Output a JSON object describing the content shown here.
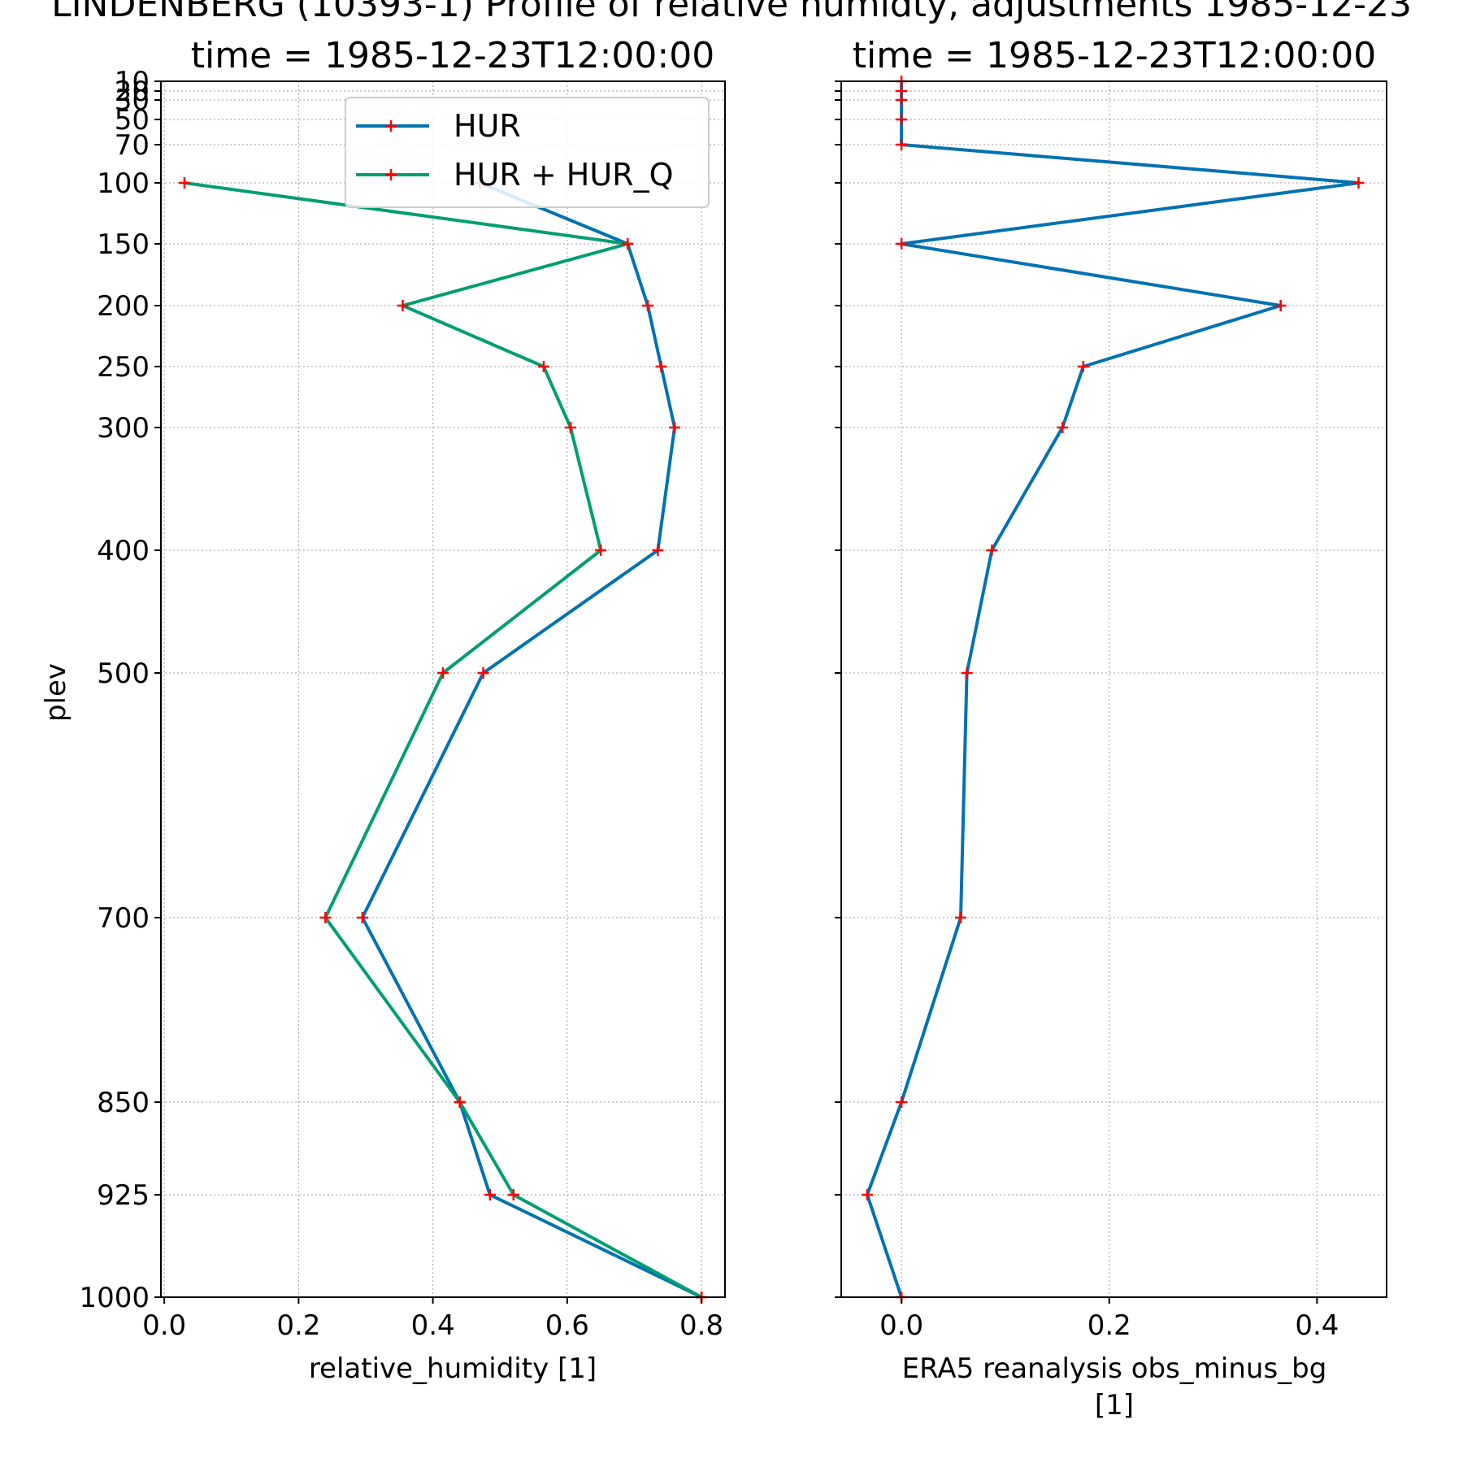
{
  "figure": {
    "suptitle": "LINDENBERG (10393-1) Profile of relative humidty, adjustments 1985-12-23"
  },
  "chart_data": [
    {
      "type": "line",
      "title": "time = 1985-12-23T12:00:00",
      "xlabel": "relative_humidity [1]",
      "ylabel": "plev",
      "xlim": [
        -0.005,
        0.835
      ],
      "ylim": [
        1000,
        10
      ],
      "xticks": [
        "0.0",
        "0.2",
        "0.4",
        "0.6",
        "0.8"
      ],
      "yticks": [
        10,
        20,
        30,
        50,
        70,
        100,
        150,
        200,
        250,
        300,
        400,
        500,
        700,
        850,
        925,
        1000
      ],
      "grid": true,
      "legend": "top-right",
      "y_scale": "custom-pressure",
      "marker_color": "#ff0000",
      "series": [
        {
          "name": "HUR",
          "color": "#0072b2",
          "points": [
            [
              0.47,
              100
            ],
            [
              0.69,
              150
            ],
            [
              0.72,
              200
            ],
            [
              0.74,
              250
            ],
            [
              0.76,
              300
            ],
            [
              0.735,
              400
            ],
            [
              0.475,
              500
            ],
            [
              0.295,
              700
            ],
            [
              0.44,
              850
            ],
            [
              0.485,
              925
            ],
            [
              0.8,
              1000
            ]
          ]
        },
        {
          "name": "HUR + HUR_Q",
          "color": "#009e73",
          "points": [
            [
              0.03,
              100
            ],
            [
              0.69,
              150
            ],
            [
              0.355,
              200
            ],
            [
              0.565,
              250
            ],
            [
              0.605,
              300
            ],
            [
              0.65,
              400
            ],
            [
              0.415,
              500
            ],
            [
              0.24,
              700
            ],
            [
              0.44,
              850
            ],
            [
              0.52,
              925
            ],
            [
              0.8,
              1000
            ]
          ]
        }
      ]
    },
    {
      "type": "line",
      "title": "time = 1985-12-23T12:00:00",
      "xlabel": "ERA5 reanalysis obs_minus_bg [1]",
      "xlim": [
        -0.058,
        0.467
      ],
      "ylim": [
        1000,
        10
      ],
      "xticks": [
        "0.0",
        "0.2",
        "0.4"
      ],
      "grid": true,
      "marker_color": "#ff0000",
      "series": [
        {
          "name": "",
          "color": "#0072b2",
          "points": [
            [
              0,
              10
            ],
            [
              0,
              20
            ],
            [
              0,
              30
            ],
            [
              0,
              50
            ],
            [
              0,
              70
            ],
            [
              0.44,
              100
            ],
            [
              0,
              150
            ],
            [
              0.365,
              200
            ],
            [
              0.175,
              250
            ],
            [
              0.155,
              300
            ],
            [
              0.087,
              400
            ],
            [
              0.063,
              500
            ],
            [
              0.057,
              700
            ],
            [
              0,
              850
            ],
            [
              -0.033,
              925
            ],
            [
              0,
              1000
            ]
          ]
        }
      ]
    }
  ]
}
